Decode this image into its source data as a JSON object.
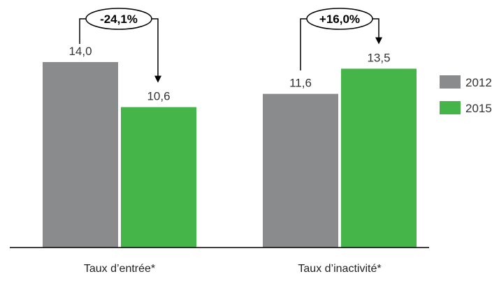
{
  "chart_data": {
    "type": "bar",
    "title": "",
    "xlabel": "",
    "ylabel": "",
    "categories": [
      "Taux d’entrée*",
      "Taux d’inactivité*"
    ],
    "series": [
      {
        "name": "2012",
        "color": "#8a8b8d",
        "values": [
          14.0,
          11.6
        ],
        "labels": [
          "14,0",
          "11,6"
        ]
      },
      {
        "name": "2015",
        "color": "#45b549",
        "values": [
          10.6,
          13.5
        ],
        "labels": [
          "10,6",
          "13,5"
        ]
      }
    ],
    "ylim": [
      0,
      15
    ],
    "grid": false,
    "legend": "right",
    "annotations": [
      {
        "category": "Taux d’entrée*",
        "text": "-24,1%",
        "from": "2012",
        "to": "2015"
      },
      {
        "category": "Taux d’inactivité*",
        "text": "+16,0%",
        "from": "2012",
        "to": "2015"
      }
    ]
  }
}
